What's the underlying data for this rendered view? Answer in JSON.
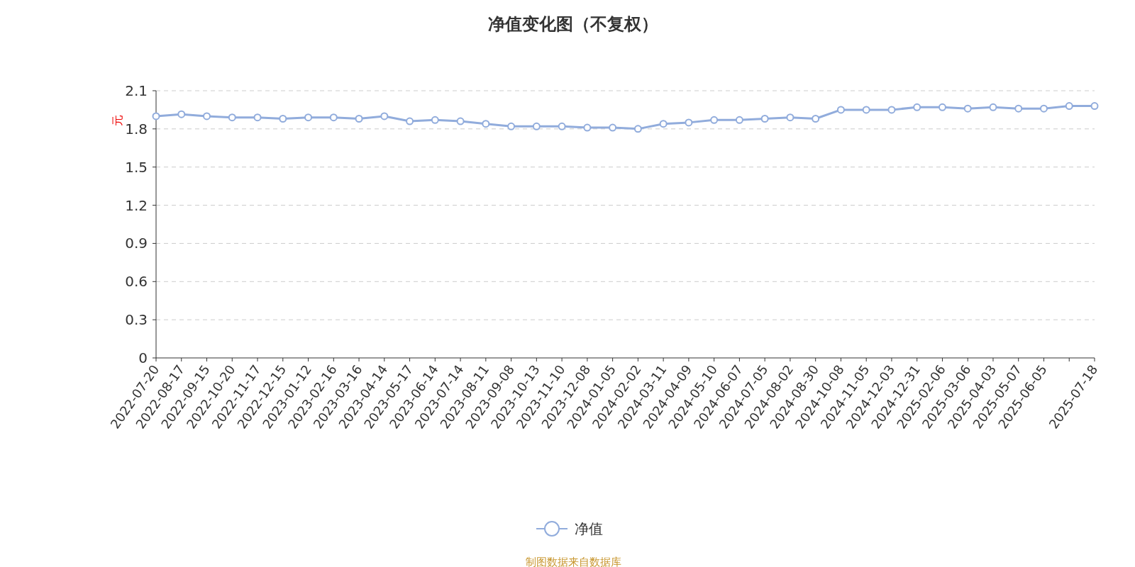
{
  "chart_data": {
    "type": "line",
    "title": "净值变化图（不复权）",
    "ylabel": "元",
    "categories": [
      "2022-07-20",
      "2022-08-17",
      "2022-09-15",
      "2022-10-20",
      "2022-11-17",
      "2022-12-15",
      "2023-01-12",
      "2023-02-16",
      "2023-03-16",
      "2023-04-14",
      "2023-05-17",
      "2023-06-14",
      "2023-07-14",
      "2023-08-11",
      "2023-09-08",
      "2023-10-13",
      "2023-11-10",
      "2023-12-08",
      "2024-01-05",
      "2024-02-02",
      "2024-03-11",
      "2024-04-09",
      "2024-05-10",
      "2024-06-07",
      "2024-07-05",
      "2024-08-02",
      "2024-08-30",
      "2024-10-08",
      "2024-11-05",
      "2024-12-03",
      "2024-12-31",
      "2025-02-06",
      "2025-03-06",
      "2025-04-03",
      "2025-05-07",
      "2025-06-05",
      null,
      "2025-07-18"
    ],
    "series": [
      {
        "name": "净值",
        "color": "#91acdc",
        "values": [
          1.9,
          1.915,
          1.9,
          1.89,
          1.89,
          1.88,
          1.89,
          1.89,
          1.88,
          1.9,
          1.86,
          1.87,
          1.86,
          1.84,
          1.82,
          1.82,
          1.82,
          1.81,
          1.81,
          1.8,
          1.84,
          1.85,
          1.87,
          1.87,
          1.88,
          1.89,
          1.88,
          1.95,
          1.95,
          1.95,
          1.97,
          1.97,
          1.96,
          1.97,
          1.96,
          1.96,
          1.98,
          1.98
        ]
      }
    ],
    "ylim": [
      0,
      2.1
    ],
    "yticks": [
      0,
      0.3,
      0.6,
      0.9,
      1.2,
      1.5,
      1.8,
      2.1
    ],
    "grid": "y",
    "legend": "bottom",
    "marker": "circle",
    "line_style": "solid",
    "annotations": [
      "制图数据来自数据库"
    ]
  }
}
